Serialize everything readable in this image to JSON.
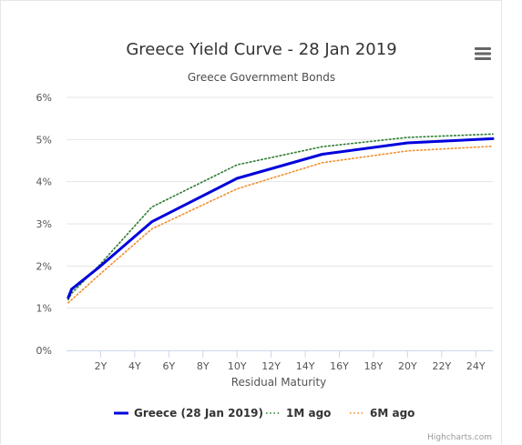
{
  "menu": {
    "icon": "hamburger-menu-icon"
  },
  "credits": "Highcharts.com",
  "chart_data": {
    "type": "line",
    "title": "Greece Yield Curve - 28 Jan 2019",
    "subtitle": "Greece Government Bonds",
    "xlabel": "Residual Maturity",
    "ylabel": "",
    "xlim": [
      0,
      25
    ],
    "ylim": [
      0,
      6
    ],
    "x_ticks": [
      2,
      4,
      6,
      8,
      10,
      12,
      14,
      16,
      18,
      20,
      22,
      24
    ],
    "x_tick_labels": [
      "2Y",
      "4Y",
      "6Y",
      "8Y",
      "10Y",
      "12Y",
      "14Y",
      "16Y",
      "18Y",
      "20Y",
      "22Y",
      "24Y"
    ],
    "y_ticks": [
      0,
      1,
      2,
      3,
      4,
      5,
      6
    ],
    "y_tick_labels": [
      "0%",
      "1%",
      "2%",
      "3%",
      "4%",
      "5%",
      "6%"
    ],
    "grid": true,
    "legend_position": "bottom-center",
    "series": [
      {
        "name": "Greece (28 Jan 2019)",
        "color": "#0000dd",
        "style": "solid",
        "x": [
          0.1,
          0.3,
          2,
          5,
          10,
          15,
          20,
          25
        ],
        "y": [
          1.25,
          1.45,
          2.0,
          3.05,
          4.08,
          4.65,
          4.92,
          5.02
        ]
      },
      {
        "name": "1M ago",
        "color": "#2e7d32",
        "style": "dotted",
        "x": [
          0.1,
          0.3,
          2,
          5,
          10,
          15,
          20,
          25
        ],
        "y": [
          1.2,
          1.35,
          2.05,
          3.4,
          4.4,
          4.83,
          5.05,
          5.13
        ]
      },
      {
        "name": "6M ago",
        "color": "#f28f2c",
        "style": "dotted",
        "x": [
          0.1,
          0.3,
          2,
          5,
          10,
          15,
          20,
          25
        ],
        "y": [
          1.13,
          1.2,
          1.82,
          2.88,
          3.83,
          4.45,
          4.73,
          4.84
        ]
      }
    ]
  }
}
